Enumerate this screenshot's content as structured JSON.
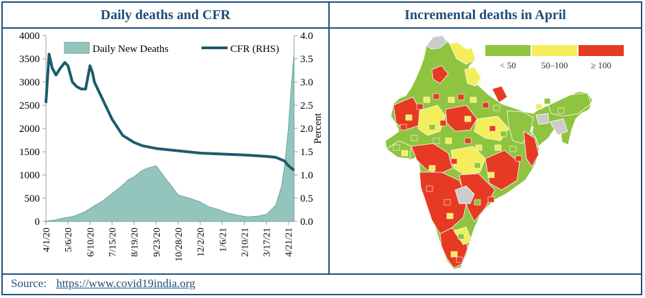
{
  "left_title": "Daily deaths and CFR",
  "right_title": "Incremental deaths in April",
  "source": {
    "label": "Source:",
    "url": "https://www.covid19india.org"
  },
  "chart_data": [
    {
      "type": "area",
      "title": "Daily deaths and CFR",
      "xlabel": "",
      "ylabel_left": "",
      "ylabel_right": "Percent",
      "ylim_left": [
        0,
        4000
      ],
      "ylim_right": [
        0.0,
        4.0
      ],
      "yticks_left": [
        "0",
        "500",
        "1000",
        "1500",
        "2000",
        "2500",
        "3000",
        "3500",
        "4000"
      ],
      "yticks_right": [
        "0.0",
        "0.5",
        "1.0",
        "1.5",
        "2.0",
        "2.5",
        "3.0",
        "3.5",
        "4.0"
      ],
      "xticks": [
        "4/1/20",
        "5/6/20",
        "6/10/20",
        "7/15/20",
        "8/19/20",
        "9/23/20",
        "10/28/20",
        "12/2/20",
        "1/6/21",
        "2/10/21",
        "3/17/21",
        "4/21/21"
      ],
      "legend": "top",
      "grid": false,
      "series": [
        {
          "name": "Daily New Deaths",
          "axis": "left",
          "kind": "area",
          "color": "#93c5bd",
          "x": [
            "4/1/20",
            "4/15/20",
            "5/1/20",
            "5/15/20",
            "6/1/20",
            "6/15/20",
            "7/1/20",
            "7/15/20",
            "8/1/20",
            "8/10/20",
            "8/19/20",
            "9/1/20",
            "9/10/20",
            "9/23/20",
            "10/1/20",
            "10/15/20",
            "10/28/20",
            "11/15/20",
            "12/2/20",
            "12/15/20",
            "1/1/21",
            "1/15/21",
            "2/1/21",
            "2/15/21",
            "3/1/21",
            "3/17/21",
            "4/1/21",
            "4/10/21",
            "4/15/21",
            "4/21/21",
            "4/25/21",
            "4/28/21",
            "4/30/21"
          ],
          "values": [
            5,
            30,
            80,
            110,
            200,
            320,
            450,
            600,
            780,
            900,
            960,
            1100,
            1150,
            1200,
            1050,
            800,
            570,
            500,
            420,
            320,
            250,
            180,
            130,
            100,
            110,
            150,
            350,
            750,
            1200,
            2000,
            2800,
            3300,
            3600
          ]
        },
        {
          "name": "CFR (RHS)",
          "axis": "right",
          "kind": "line",
          "color": "#1b5c6b",
          "x": [
            "4/1/20",
            "4/6/20",
            "4/11/20",
            "4/17/20",
            "4/24/20",
            "5/1/20",
            "5/6/20",
            "5/13/20",
            "5/20/20",
            "5/27/20",
            "6/3/20",
            "6/10/20",
            "6/14/20",
            "6/17/20",
            "7/1/20",
            "7/15/20",
            "8/1/20",
            "8/19/20",
            "9/1/20",
            "9/23/20",
            "10/28/20",
            "12/2/20",
            "1/6/21",
            "2/10/21",
            "3/17/21",
            "4/1/21",
            "4/15/21",
            "4/21/21",
            "4/30/21"
          ],
          "values": [
            2.55,
            3.6,
            3.3,
            3.15,
            3.3,
            3.42,
            3.35,
            3.0,
            2.9,
            2.85,
            2.85,
            3.35,
            3.2,
            3.0,
            2.6,
            2.2,
            1.85,
            1.7,
            1.63,
            1.57,
            1.52,
            1.47,
            1.45,
            1.43,
            1.4,
            1.38,
            1.3,
            1.2,
            1.1
          ]
        }
      ]
    },
    {
      "type": "map",
      "title": "Incremental deaths in April",
      "legend": "top-right",
      "categories": [
        {
          "label": "< 50",
          "color": "#8fc440"
        },
        {
          "label": "50–100",
          "color": "#f3ee5a"
        },
        {
          "label": "≥ 100",
          "color": "#e63a23"
        }
      ],
      "no_data_color": "#cccccc"
    }
  ]
}
